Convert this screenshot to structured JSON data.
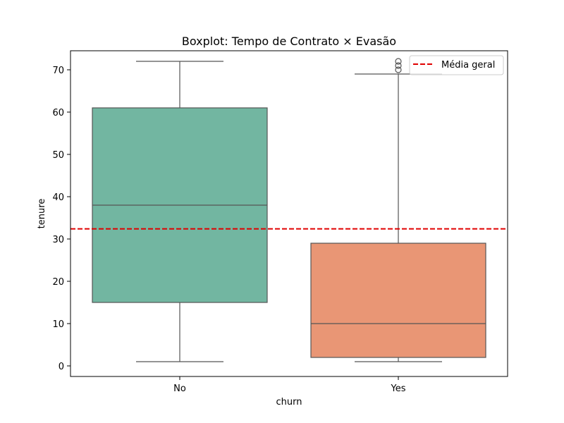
{
  "chart_data": {
    "type": "boxplot",
    "title": "Boxplot: Tempo de Contrato × Evasão",
    "xlabel": "churn",
    "ylabel": "tenure",
    "ylim": [
      -2.5,
      74.5
    ],
    "yticks": [
      0,
      10,
      20,
      30,
      40,
      50,
      60,
      70
    ],
    "grid": false,
    "legend_position": "top-right",
    "categories": [
      "No",
      "Yes"
    ],
    "series": [
      {
        "category": "No",
        "whisker_low": 1,
        "q1": 15,
        "median": 38,
        "q3": 61,
        "whisker_high": 72,
        "outliers": [],
        "color": "#72b6a1"
      },
      {
        "category": "Yes",
        "whisker_low": 1,
        "q1": 2,
        "median": 10,
        "q3": 29,
        "whisker_high": 69,
        "outliers": [
          70,
          71,
          72
        ],
        "color": "#e99675"
      }
    ],
    "reference_line": {
      "label": "Média geral",
      "value": 32.4,
      "color": "#e00000",
      "style": "dashed"
    }
  }
}
